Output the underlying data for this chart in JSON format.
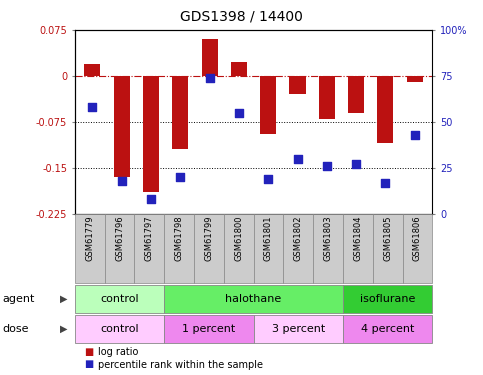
{
  "title": "GDS1398 / 14400",
  "samples": [
    "GSM61779",
    "GSM61796",
    "GSM61797",
    "GSM61798",
    "GSM61799",
    "GSM61800",
    "GSM61801",
    "GSM61802",
    "GSM61803",
    "GSM61804",
    "GSM61805",
    "GSM61806"
  ],
  "log_ratio": [
    0.02,
    -0.165,
    -0.19,
    -0.12,
    0.06,
    0.022,
    -0.095,
    -0.03,
    -0.07,
    -0.06,
    -0.11,
    -0.01
  ],
  "percentile_rank": [
    58,
    18,
    8,
    20,
    74,
    55,
    19,
    30,
    26,
    27,
    17,
    43
  ],
  "ylim_left": [
    -0.225,
    0.075
  ],
  "ylim_right": [
    0,
    100
  ],
  "yticks_left": [
    0.075,
    0,
    -0.075,
    -0.15,
    -0.225
  ],
  "yticks_right": [
    100,
    75,
    50,
    25,
    0
  ],
  "hline_y": 0,
  "dotted_lines": [
    -0.075,
    -0.15
  ],
  "agent_groups": [
    {
      "label": "control",
      "start": 0,
      "end": 3,
      "color": "#bbffbb"
    },
    {
      "label": "halothane",
      "start": 3,
      "end": 9,
      "color": "#66ee66"
    },
    {
      "label": "isoflurane",
      "start": 9,
      "end": 12,
      "color": "#33cc33"
    }
  ],
  "dose_groups": [
    {
      "label": "control",
      "start": 0,
      "end": 3,
      "color": "#ffccff"
    },
    {
      "label": "1 percent",
      "start": 3,
      "end": 6,
      "color": "#ee88ee"
    },
    {
      "label": "3 percent",
      "start": 6,
      "end": 9,
      "color": "#ffccff"
    },
    {
      "label": "4 percent",
      "start": 9,
      "end": 12,
      "color": "#ee88ee"
    }
  ],
  "bar_color": "#bb1111",
  "dot_color": "#2222bb",
  "bar_width": 0.55,
  "dot_size": 28,
  "title_fontsize": 10,
  "tick_fontsize": 7,
  "legend_fontsize": 7,
  "label_fontsize": 8,
  "row_label_fontsize": 8,
  "sample_fontsize": 6
}
